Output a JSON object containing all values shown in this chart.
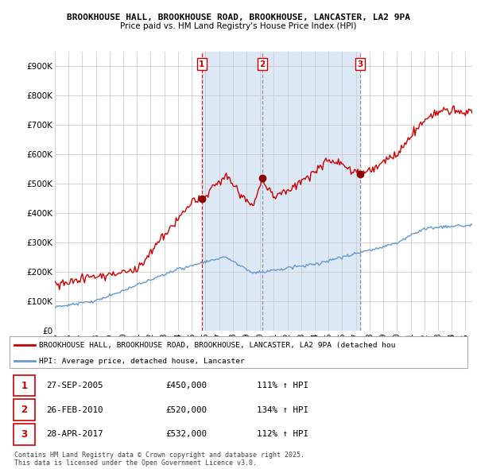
{
  "title1": "BROOKHOUSE HALL, BROOKHOUSE ROAD, BROOKHOUSE, LANCASTER, LA2 9PA",
  "title2": "Price paid vs. HM Land Registry's House Price Index (HPI)",
  "ylabel_vals": [
    "£0",
    "£100K",
    "£200K",
    "£300K",
    "£400K",
    "£500K",
    "£600K",
    "£700K",
    "£800K",
    "£900K"
  ],
  "yticks": [
    0,
    100000,
    200000,
    300000,
    400000,
    500000,
    600000,
    700000,
    800000,
    900000
  ],
  "xlim_start": 1995.0,
  "xlim_end": 2025.5,
  "ylim": [
    0,
    950000
  ],
  "sales": [
    {
      "date_dec": 2005.74,
      "price": 450000,
      "label": "1",
      "line_style": "--",
      "line_color": "#cc0000"
    },
    {
      "date_dec": 2010.15,
      "price": 520000,
      "label": "2",
      "line_style": "--",
      "line_color": "#888888"
    },
    {
      "date_dec": 2017.32,
      "price": 532000,
      "label": "3",
      "line_style": "--",
      "line_color": "#888888"
    }
  ],
  "shade_color": "#dce8f5",
  "sale_line_color": "#cc0000",
  "hpi_color": "#6699cc",
  "background_color": "#ffffff",
  "grid_color": "#cccccc",
  "legend_items": [
    "BROOKHOUSE HALL, BROOKHOUSE ROAD, BROOKHOUSE, LANCASTER, LA2 9PA (detached hou",
    "HPI: Average price, detached house, Lancaster"
  ],
  "table_rows": [
    {
      "num": "1",
      "date": "27-SEP-2005",
      "price": "£450,000",
      "pct": "111% ↑ HPI"
    },
    {
      "num": "2",
      "date": "26-FEB-2010",
      "price": "£520,000",
      "pct": "134% ↑ HPI"
    },
    {
      "num": "3",
      "date": "28-APR-2017",
      "price": "£532,000",
      "pct": "112% ↑ HPI"
    }
  ],
  "footer": "Contains HM Land Registry data © Crown copyright and database right 2025.\nThis data is licensed under the Open Government Licence v3.0."
}
